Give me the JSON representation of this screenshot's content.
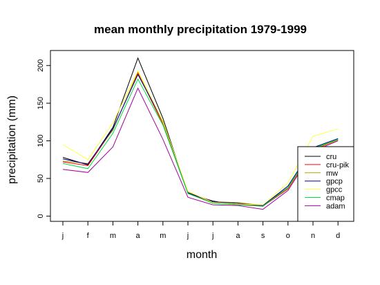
{
  "chart_data": {
    "type": "line",
    "title": "mean monthly precipitation 1979-1999",
    "xlabel": "month",
    "ylabel": "precipitation (mm)",
    "categories": [
      "j",
      "f",
      "m",
      "a",
      "m",
      "j",
      "j",
      "a",
      "s",
      "o",
      "n",
      "d"
    ],
    "y_ticks": [
      "0",
      "50",
      "100",
      "150",
      "200"
    ],
    "ylim": [
      -7,
      220
    ],
    "grid": false,
    "legend_position": "bottom-right",
    "series": [
      {
        "name": "cru",
        "color": "#000000",
        "values": [
          78,
          68,
          118,
          210,
          130,
          30,
          20,
          15,
          14,
          38,
          90,
          102
        ]
      },
      {
        "name": "cru-pik",
        "color": "#ff0000",
        "values": [
          72,
          67,
          115,
          190,
          122,
          31,
          18,
          16,
          13,
          36,
          88,
          101
        ]
      },
      {
        "name": "mw",
        "color": "#b8a000",
        "values": [
          73,
          70,
          114,
          192,
          124,
          32,
          19,
          18,
          14,
          37,
          89,
          101
        ]
      },
      {
        "name": "gpcp",
        "color": "#0000a0",
        "values": [
          76,
          69,
          116,
          188,
          126,
          31,
          19,
          17,
          14,
          40,
          91,
          103
        ]
      },
      {
        "name": "gpcc",
        "color": "#ffff40",
        "values": [
          95,
          75,
          124,
          193,
          126,
          33,
          18,
          16,
          15,
          44,
          106,
          116
        ]
      },
      {
        "name": "cmap",
        "color": "#00dd44",
        "values": [
          70,
          63,
          110,
          182,
          121,
          30,
          17,
          15,
          13,
          38,
          90,
          102
        ]
      },
      {
        "name": "adam",
        "color": "#a000a0",
        "values": [
          62,
          58,
          92,
          170,
          102,
          25,
          15,
          14,
          9,
          34,
          86,
          100
        ]
      }
    ]
  }
}
